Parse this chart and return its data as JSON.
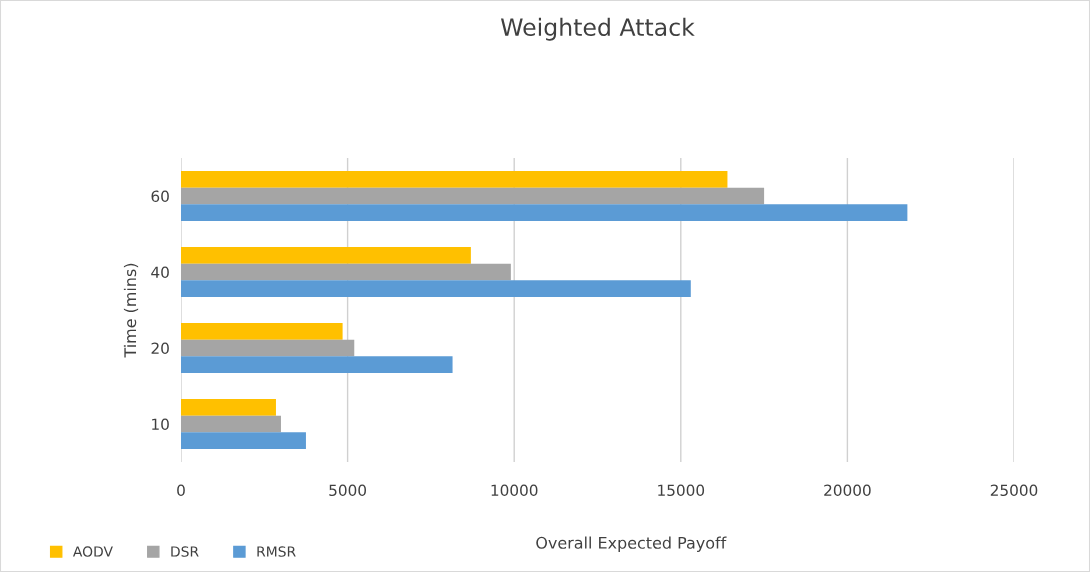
{
  "chart_data": {
    "type": "bar",
    "orientation": "horizontal",
    "title": "Weighted Attack",
    "xlabel": "Overall Expected Payoff",
    "ylabel": "Time (mins)",
    "categories": [
      "60",
      "40",
      "20",
      "10"
    ],
    "series": [
      {
        "name": "AODV",
        "color": "#ffc000",
        "values": [
          16400,
          8700,
          4850,
          2850
        ]
      },
      {
        "name": "DSR",
        "color": "#a5a5a5",
        "values": [
          17500,
          9900,
          5200,
          3000
        ]
      },
      {
        "name": "RMSR",
        "color": "#5b9bd5",
        "values": [
          21800,
          15300,
          8150,
          3750
        ]
      }
    ],
    "xlim": [
      0,
      25000
    ],
    "xticks": [
      0,
      5000,
      10000,
      15000,
      20000,
      25000
    ],
    "grid": "x",
    "legend": "bottom left"
  }
}
